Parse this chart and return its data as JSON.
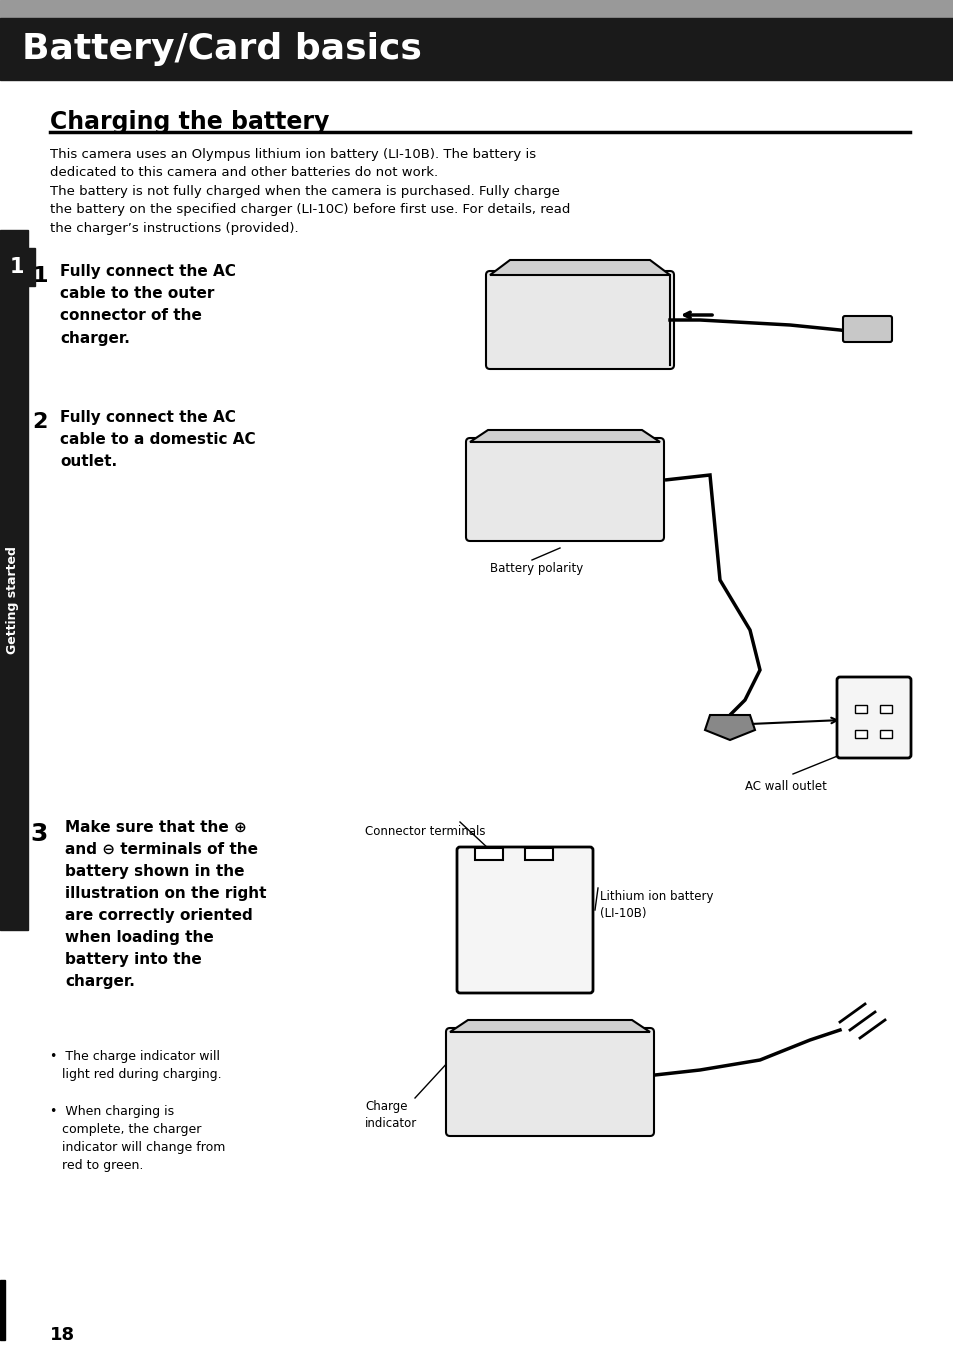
{
  "title": "Battery/Card basics",
  "title_bg": "#1a1a1a",
  "title_color": "#ffffff",
  "section_title": "Charging the battery",
  "page_bg": "#ffffff",
  "text_color": "#000000",
  "sidebar_bg": "#1a1a1a",
  "sidebar_text": "Getting started",
  "sidebar_number": "1",
  "page_number": "18",
  "intro_text1": "This camera uses an Olympus lithium ion battery (LI-10B). The battery is\ndedicated to this camera and other batteries do not work.",
  "intro_text2": "The battery is not fully charged when the camera is purchased. Fully charge\nthe battery on the specified charger (LI-10C) before first use. For details, read\nthe charger’s instructions (provided).",
  "step1_num": "1",
  "step1_text": "Fully connect the AC\ncable to the outer\nconnector of the\ncharger.",
  "step2_num": "2",
  "step2_text": "Fully connect the AC\ncable to a domestic AC\noutlet.",
  "step3_num": "3",
  "step3_text": "Make sure that the ⊕\nand ⊖ terminals of the\nbattery shown in the\nillustration on the right\nare correctly oriented\nwhen loading the\nbattery into the\ncharger.",
  "step3_bullet1": "•  The charge indicator will\n   light red during charging.",
  "step3_bullet2": "•  When charging is\n   complete, the charger\n   indicator will change from\n   red to green.",
  "label_battery_polarity": "Battery polarity",
  "label_ac_wall_outlet": "AC wall outlet",
  "label_connector_terminals": "Connector terminals",
  "label_lithium_battery": "Lithium ion battery\n(LI-10B)",
  "label_charge_indicator": "Charge\nindicator"
}
